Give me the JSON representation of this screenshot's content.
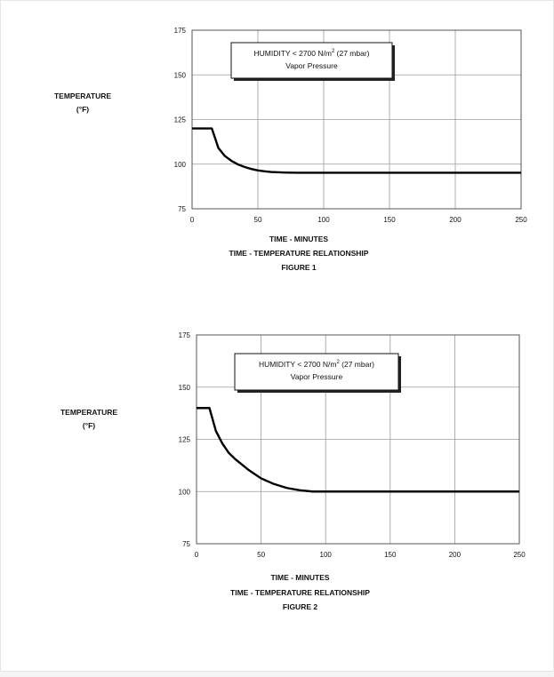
{
  "chart_data": [
    {
      "type": "line",
      "ylabel": "TEMPERATURE",
      "ylabel_unit": "(°F)",
      "xlabel": "TIME - MINUTES",
      "caption": "TIME - TEMPERATURE RELATIONSHIP",
      "figure": "FIGURE 1",
      "annotation": {
        "line1_prefix": "HUMIDITY < 2700 N/m",
        "line1_sup": "2",
        "line1_suffix": " (27 mbar)",
        "line2": "Vapor Pressure"
      },
      "xlim": [
        0,
        250
      ],
      "ylim": [
        75,
        175
      ],
      "x_ticks": [
        0,
        50,
        100,
        150,
        200,
        250
      ],
      "y_ticks": [
        75,
        100,
        125,
        150,
        175
      ],
      "grid": true,
      "series": [
        {
          "x": [
            0,
            15,
            20,
            25,
            30,
            35,
            40,
            45,
            50,
            55,
            60,
            70,
            80,
            250
          ],
          "y": [
            120,
            120,
            109,
            104.5,
            101.8,
            99.8,
            98.4,
            97.3,
            96.5,
            96,
            95.6,
            95.3,
            95.2,
            95.2
          ]
        }
      ]
    },
    {
      "type": "line",
      "ylabel": "TEMPERATURE",
      "ylabel_unit": "(°F)",
      "xlabel": "TIME - MINUTES",
      "caption": "TIME - TEMPERATURE RELATIONSHIP",
      "figure": "FIGURE 2",
      "annotation": {
        "line1_prefix": "HUMIDITY < 2700 N/m",
        "line1_sup": "2",
        "line1_suffix": " (27 mbar)",
        "line2": "Vapor Pressure"
      },
      "xlim": [
        0,
        250
      ],
      "ylim": [
        75,
        175
      ],
      "x_ticks": [
        0,
        50,
        100,
        150,
        200,
        250
      ],
      "y_ticks": [
        75,
        100,
        125,
        150,
        175
      ],
      "grid": true,
      "series": [
        {
          "x": [
            0,
            10,
            15,
            20,
            25,
            30,
            40,
            50,
            60,
            70,
            80,
            90,
            100,
            250
          ],
          "y": [
            140,
            140,
            129,
            123,
            118.5,
            115.5,
            110.5,
            106.3,
            103.6,
            101.7,
            100.6,
            100,
            100,
            100
          ]
        }
      ]
    }
  ]
}
